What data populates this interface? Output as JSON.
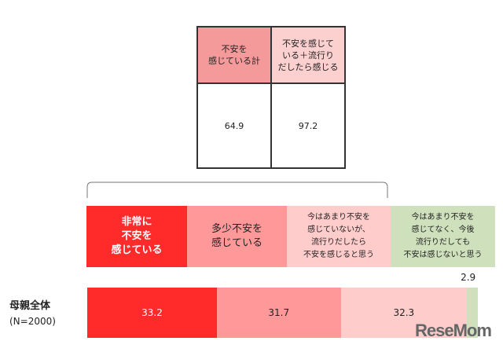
{
  "summary_table": {
    "headers": [
      "不安を\n感じている計",
      "不安を感じて\nいる＋流行り\nだしたら感じる"
    ],
    "values": [
      "64.9",
      "97.2"
    ]
  },
  "chart_data": {
    "type": "bar",
    "orientation": "horizontal-stacked",
    "categories": [
      "母親全体"
    ],
    "category_note": "(N=2000)",
    "series": [
      {
        "name": "非常に\n不安を\n感じている",
        "values": [
          33.2
        ],
        "color": "#ff2b2b"
      },
      {
        "name": "多少不安を\n感じている",
        "values": [
          31.7
        ],
        "color": "#ff9999"
      },
      {
        "name": "今はあまり不安を\n感じていないが、\n流行りだしたら\n不安を感じると思う",
        "values": [
          32.3
        ],
        "color": "#ffcccc"
      },
      {
        "name": "今はあまり不安を\n感じてなく、今後\n流行りだしても\n不安は感じないと思う",
        "values": [
          2.9
        ],
        "color": "#cfe0bc"
      }
    ],
    "xlim": [
      0,
      100
    ]
  },
  "watermark": "ReseMom"
}
